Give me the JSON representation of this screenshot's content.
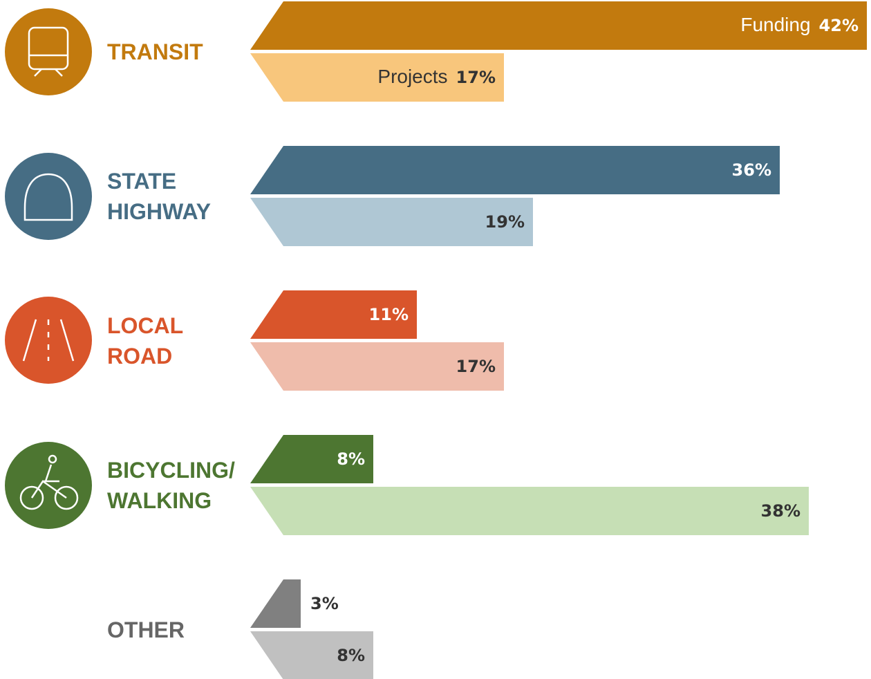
{
  "chart_data": {
    "type": "bar",
    "categories": [
      "TRANSIT",
      "STATE HIGHWAY",
      "LOCAL ROAD",
      "BICYCLING/ WALKING",
      "OTHER"
    ],
    "category_colors": [
      "#c27a0e",
      "#466d84",
      "#d9552b",
      "#4d7631",
      "#666666"
    ],
    "series": [
      {
        "name": "Funding",
        "values": [
          42,
          36,
          11,
          8,
          3
        ],
        "value_labels": [
          "42%",
          "36%",
          "11%",
          "8%",
          "3%"
        ],
        "colors": [
          "#c27a0e",
          "#466d84",
          "#d9552b",
          "#4d7631",
          "#808080"
        ]
      },
      {
        "name": "Projects",
        "values": [
          17,
          19,
          17,
          38,
          8
        ],
        "value_labels": [
          "17%",
          "19%",
          "17%",
          "38%",
          "8%"
        ],
        "colors": [
          "#f8c67c",
          "#afc7d4",
          "#efbcab",
          "#c6dfb5",
          "#c0c0c0"
        ]
      }
    ]
  }
}
